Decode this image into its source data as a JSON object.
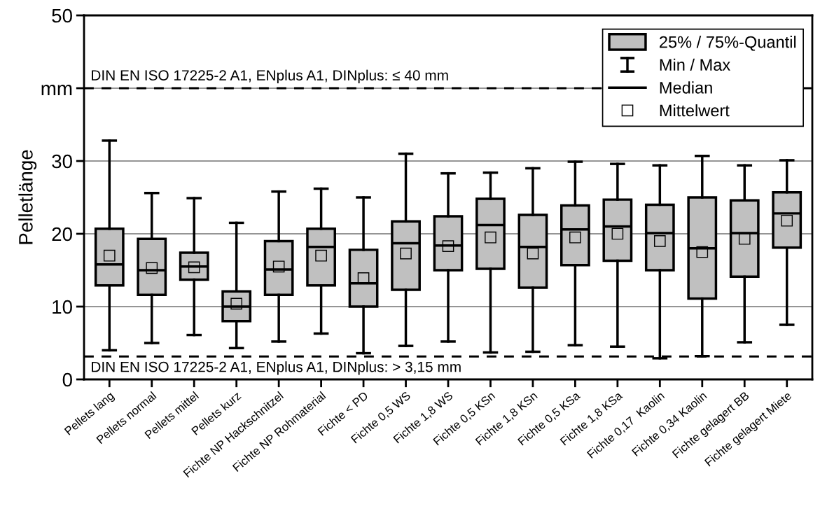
{
  "chart_data": {
    "type": "box",
    "ylabel": "Pelletlänge",
    "categories": [
      "Pellets lang",
      "Pellets normal",
      "Pellets mittel",
      "Pellets kurz",
      "Fichte NP Hackschnitzel",
      "Fichte NP Rohmaterial",
      "Fichte < PD",
      "Fichte 0,5 WS",
      "Fichte 1,8 WS",
      "Fichte 0,5 KSn",
      "Fichte 1,8 KSn",
      "Fichte 0,5 KSa",
      "Fichte 1,8 KSa",
      "Fichte 0,17  Kaolin",
      "Fichte 0,34 Kaolin",
      "Fichte gelagert BB",
      "Fichte gelagert Miete"
    ],
    "color": "#c0c0c0",
    "marker": "square",
    "grid": "y",
    "ylim": [
      0,
      50
    ],
    "yticks": [
      0,
      10,
      20,
      30,
      {
        "value": 40,
        "label": "mm"
      },
      50
    ],
    "boxes": [
      {
        "low": 4.0,
        "q1": 12.9,
        "median": 15.8,
        "q3": 20.7,
        "high": 32.8,
        "mean": 17.0
      },
      {
        "low": 5.0,
        "q1": 11.6,
        "median": 15.0,
        "q3": 19.3,
        "high": 25.6,
        "mean": 15.3
      },
      {
        "low": 6.1,
        "q1": 13.7,
        "median": 15.5,
        "q3": 17.4,
        "high": 24.9,
        "mean": 15.4
      },
      {
        "low": 4.3,
        "q1": 8.0,
        "median": 10.0,
        "q3": 12.1,
        "high": 21.5,
        "mean": 10.4
      },
      {
        "low": 5.2,
        "q1": 11.6,
        "median": 15.1,
        "q3": 19.0,
        "high": 25.8,
        "mean": 15.5
      },
      {
        "low": 6.3,
        "q1": 12.9,
        "median": 18.2,
        "q3": 20.7,
        "high": 26.2,
        "mean": 17.0
      },
      {
        "low": 3.6,
        "q1": 10.0,
        "median": 13.2,
        "q3": 17.8,
        "high": 25.0,
        "mean": 13.9
      },
      {
        "low": 4.6,
        "q1": 12.3,
        "median": 18.7,
        "q3": 21.7,
        "high": 31.0,
        "mean": 17.3
      },
      {
        "low": 5.2,
        "q1": 15.0,
        "median": 18.4,
        "q3": 22.4,
        "high": 28.3,
        "mean": 18.3
      },
      {
        "low": 3.7,
        "q1": 15.2,
        "median": 21.2,
        "q3": 24.8,
        "high": 28.4,
        "mean": 19.5
      },
      {
        "low": 3.8,
        "q1": 12.6,
        "median": 18.2,
        "q3": 22.6,
        "high": 29.0,
        "mean": 17.3
      },
      {
        "low": 4.7,
        "q1": 15.7,
        "median": 20.6,
        "q3": 23.9,
        "high": 29.9,
        "mean": 19.5
      },
      {
        "low": 4.5,
        "q1": 16.3,
        "median": 21.0,
        "q3": 24.7,
        "high": 29.6,
        "mean": 20.0
      },
      {
        "low": 2.9,
        "q1": 15.0,
        "median": 20.1,
        "q3": 24.0,
        "high": 29.4,
        "mean": 19.0
      },
      {
        "low": 3.2,
        "q1": 11.1,
        "median": 18.0,
        "q3": 25.0,
        "high": 30.7,
        "mean": 17.5
      },
      {
        "low": 5.1,
        "q1": 14.1,
        "median": 20.1,
        "q3": 24.6,
        "high": 29.4,
        "mean": 19.3
      },
      {
        "low": 7.5,
        "q1": 18.1,
        "median": 22.8,
        "q3": 25.7,
        "high": 30.1,
        "mean": 21.8
      }
    ],
    "ref_lines": [
      {
        "axis": "y",
        "value": 40,
        "line_style": "dashed",
        "color": "#000000"
      },
      {
        "axis": "y",
        "value": 3.15,
        "line_style": "dashed",
        "color": "#000000"
      }
    ],
    "annotations": [
      "25% / 75%-Quantil",
      "Min / Max",
      "Median",
      "Mittelwert",
      {
        "text": "DIN EN ISO 17225-2 A1, ENplus A1, DINplus: ≤ 40 mm",
        "y": 40
      },
      {
        "text": "DIN EN ISO 17225-2 A1, ENplus A1, DINplus: > 3,15 mm",
        "y": 3.15
      }
    ]
  }
}
